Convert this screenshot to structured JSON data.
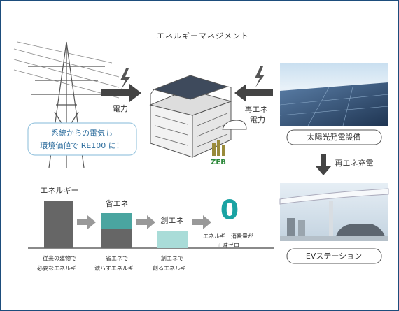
{
  "title": "エネルギーマネジメント",
  "grid_power": {
    "label": "電力"
  },
  "renewable_power": {
    "label": [
      "再エネ",
      "電力"
    ]
  },
  "callout": {
    "lines": [
      "系統からの電気も",
      "環境価値で RE100 に！"
    ]
  },
  "badge": "ZEB",
  "solar": {
    "label": "太陽光発電設備"
  },
  "charging": {
    "label": "再エネ充電"
  },
  "ev": {
    "label": "EVステーション"
  },
  "energy_steps": [
    {
      "label": "エネルギー",
      "caption": [
        "従来の建物で",
        "必要なエネルギー"
      ]
    },
    {
      "label": "省エネ",
      "caption": [
        "省エネで",
        "減らすエネルギー"
      ]
    },
    {
      "label": "創エネ",
      "caption": [
        "創エネで",
        "創るエネルギー"
      ]
    }
  ],
  "result": {
    "value_text": "0",
    "caption": [
      "エネルギー消費量が",
      "正味ゼロ"
    ]
  }
}
